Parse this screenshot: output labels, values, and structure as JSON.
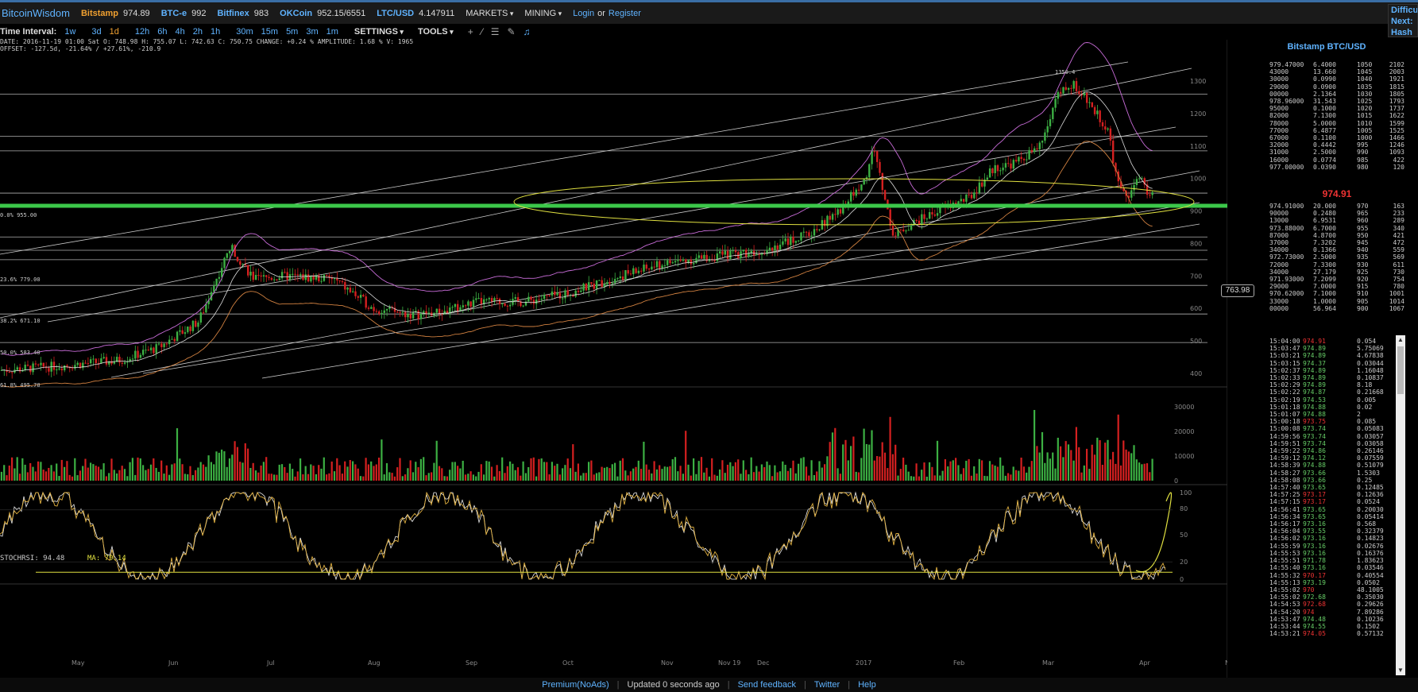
{
  "header": {
    "logo": "BitcoinWisdom",
    "exchanges": [
      {
        "name": "Bitstamp",
        "value": "974.89"
      },
      {
        "name": "BTC-e",
        "value": "992"
      },
      {
        "name": "Bitfinex",
        "value": "983"
      },
      {
        "name": "OKCoin",
        "value": "952.15/6551"
      },
      {
        "name": "LTC/USD",
        "value": "4.147911"
      }
    ],
    "menus": [
      "MARKETS",
      "MINING"
    ],
    "login": "Login",
    "or": "or",
    "register": "Register",
    "difficulty": [
      "Difficu",
      "Next:",
      "Hash R"
    ]
  },
  "toolbar": {
    "label": "Time Interval:",
    "intervals": [
      "1w",
      "3d",
      "1d",
      "12h",
      "6h",
      "4h",
      "2h",
      "1h",
      "30m",
      "15m",
      "5m",
      "3m",
      "1m"
    ],
    "active_interval": "1d",
    "settings": "SETTINGS",
    "tools": "TOOLS"
  },
  "info": {
    "line1": "DATE: 2016-11-19 01:00 Sat    O: 748.98    H: 755.07    L: 742.63    C: 750.75    CHANGE: +0.24 %    AMPLITUDE: 1.68 %    V: 1965",
    "line2": "OFFSET: -127.5d, -21.64% / +27.61%, -210.9",
    "stoch": "STOCHRSI: 94.48",
    "ma": "MA: 79.14",
    "price_tag": "763.98",
    "fib_labels": [
      "0.0% 955.00",
      "23.6% 779.00",
      "38.2% 671.10",
      "50.0% 583.40",
      "61.8% 495.70"
    ],
    "high_label": "1350.4"
  },
  "chart_data": {
    "type": "candlestick",
    "x_labels": [
      "May",
      "Jun",
      "Jul",
      "Aug",
      "Sep",
      "Oct",
      "Nov",
      "Nov 19",
      "Dec",
      "2017",
      "Feb",
      "Mar",
      "Apr",
      "Now"
    ],
    "y_ticks": [
      400,
      500,
      600,
      700,
      800,
      900,
      1000,
      1100,
      1200,
      1300
    ],
    "volume_ticks": [
      "0",
      "10000",
      "20000",
      "30000"
    ],
    "stoch_ticks": [
      "0",
      "20",
      "50",
      "80",
      "100"
    ],
    "highlighted_level": 920,
    "colors": {
      "up": "#3cb043",
      "down": "#d42020",
      "highlight": "#3cc84a",
      "ellipse": "#e0e040",
      "ma": "#c86cd8"
    }
  },
  "orderbook": {
    "title": "Bitstamp BTC/USD",
    "last_price": "974.91",
    "asks": [
      [
        "979.47000",
        "6.4000",
        "1050",
        "2102"
      ],
      [
        "43000",
        "13.660",
        "1045",
        "2003"
      ],
      [
        "30000",
        "0.0990",
        "1040",
        "1921"
      ],
      [
        "29000",
        "0.0900",
        "1035",
        "1815"
      ],
      [
        "00000",
        "2.1364",
        "1030",
        "1805"
      ],
      [
        "978.96000",
        "31.543",
        "1025",
        "1793"
      ],
      [
        "95000",
        "0.1000",
        "1020",
        "1737"
      ],
      [
        "82000",
        "7.1300",
        "1015",
        "1622"
      ],
      [
        "78000",
        "5.0000",
        "1010",
        "1599"
      ],
      [
        "77000",
        "6.4877",
        "1005",
        "1525"
      ],
      [
        "67000",
        "0.1100",
        "1000",
        "1466"
      ],
      [
        "32000",
        "0.4442",
        "995",
        "1246"
      ],
      [
        "31000",
        "2.5000",
        "990",
        "1093"
      ],
      [
        "16000",
        "0.0774",
        "985",
        "422"
      ],
      [
        "977.00000",
        "0.0390",
        "980",
        "120"
      ]
    ],
    "bids": [
      [
        "974.91000",
        "20.000",
        "970",
        "163"
      ],
      [
        "90000",
        "0.2480",
        "965",
        "233"
      ],
      [
        "13000",
        "6.9531",
        "960",
        "289"
      ],
      [
        "973.88000",
        "6.7000",
        "955",
        "340"
      ],
      [
        "87000",
        "4.8700",
        "950",
        "421"
      ],
      [
        "37000",
        "7.3202",
        "945",
        "472"
      ],
      [
        "34000",
        "0.1366",
        "940",
        "559"
      ],
      [
        "972.73000",
        "2.5000",
        "935",
        "569"
      ],
      [
        "72000",
        "7.3300",
        "930",
        "611"
      ],
      [
        "34000",
        "27.179",
        "925",
        "730"
      ],
      [
        "971.93000",
        "7.2099",
        "920",
        "754"
      ],
      [
        "29000",
        "7.0000",
        "915",
        "780"
      ],
      [
        "970.62000",
        "7.1000",
        "910",
        "1001"
      ],
      [
        "33000",
        "1.0000",
        "905",
        "1014"
      ],
      [
        "00000",
        "56.964",
        "900",
        "1067"
      ]
    ]
  },
  "trades": [
    [
      "15:04:00",
      "974.91",
      "dn",
      "0.054"
    ],
    [
      "15:03:47",
      "974.89",
      "up",
      "5.75069"
    ],
    [
      "15:03:21",
      "974.89",
      "up",
      "4.67838"
    ],
    [
      "15:03:15",
      "974.37",
      "up",
      "0.03044"
    ],
    [
      "15:02:37",
      "974.89",
      "up",
      "1.16048"
    ],
    [
      "15:02:33",
      "974.89",
      "up",
      "0.10837"
    ],
    [
      "15:02:29",
      "974.89",
      "up",
      "8.18"
    ],
    [
      "15:02:22",
      "974.87",
      "up",
      "0.21668"
    ],
    [
      "15:02:19",
      "974.53",
      "up",
      "0.005"
    ],
    [
      "15:01:18",
      "974.88",
      "up",
      "0.02"
    ],
    [
      "15:01:07",
      "974.88",
      "up",
      "2"
    ],
    [
      "15:00:18",
      "973.75",
      "dn",
      "0.085"
    ],
    [
      "15:00:08",
      "973.74",
      "up",
      "0.05083"
    ],
    [
      "14:59:56",
      "973.74",
      "up",
      "0.03057"
    ],
    [
      "14:59:51",
      "973.74",
      "up",
      "0.03058"
    ],
    [
      "14:59:22",
      "974.86",
      "up",
      "0.26146"
    ],
    [
      "14:59:12",
      "974.12",
      "up",
      "0.07559"
    ],
    [
      "14:58:39",
      "974.88",
      "up",
      "0.51079"
    ],
    [
      "14:58:27",
      "973.66",
      "up",
      "1.5303"
    ],
    [
      "14:58:08",
      "973.66",
      "up",
      "0.25"
    ],
    [
      "14:57:40",
      "973.65",
      "up",
      "0.12485"
    ],
    [
      "14:57:25",
      "973.17",
      "dn",
      "0.12636"
    ],
    [
      "14:57:15",
      "973.17",
      "dn",
      "0.0524"
    ],
    [
      "14:56:41",
      "973.65",
      "up",
      "0.20030"
    ],
    [
      "14:56:34",
      "973.65",
      "up",
      "0.05414"
    ],
    [
      "14:56:17",
      "973.16",
      "up",
      "0.568"
    ],
    [
      "14:56:04",
      "973.55",
      "up",
      "0.32379"
    ],
    [
      "14:56:02",
      "973.16",
      "up",
      "0.14823"
    ],
    [
      "14:55:59",
      "973.16",
      "up",
      "0.02676"
    ],
    [
      "14:55:53",
      "973.16",
      "up",
      "0.16376"
    ],
    [
      "14:55:51",
      "971.78",
      "up",
      "1.83623"
    ],
    [
      "14:55:40",
      "973.16",
      "up",
      "0.03546"
    ],
    [
      "14:55:32",
      "970.17",
      "dn",
      "0.40554"
    ],
    [
      "14:55:13",
      "973.19",
      "up",
      "0.0502"
    ],
    [
      "14:55:02",
      "970",
      "dn",
      "48.1005"
    ],
    [
      "14:55:02",
      "972.68",
      "up",
      "0.35030"
    ],
    [
      "14:54:53",
      "972.68",
      "dn",
      "0.29626"
    ],
    [
      "14:54:20",
      "974",
      "dn",
      "7.89286"
    ],
    [
      "14:53:47",
      "974.48",
      "up",
      "0.10236"
    ],
    [
      "14:53:44",
      "974.55",
      "up",
      "0.1502"
    ],
    [
      "14:53:21",
      "974.05",
      "dn",
      "0.57132"
    ]
  ],
  "footer": {
    "premium": "Premium(NoAds)",
    "updated": "Updated 0 seconds ago",
    "feedback": "Send feedback",
    "twitter": "Twitter",
    "help": "Help"
  }
}
